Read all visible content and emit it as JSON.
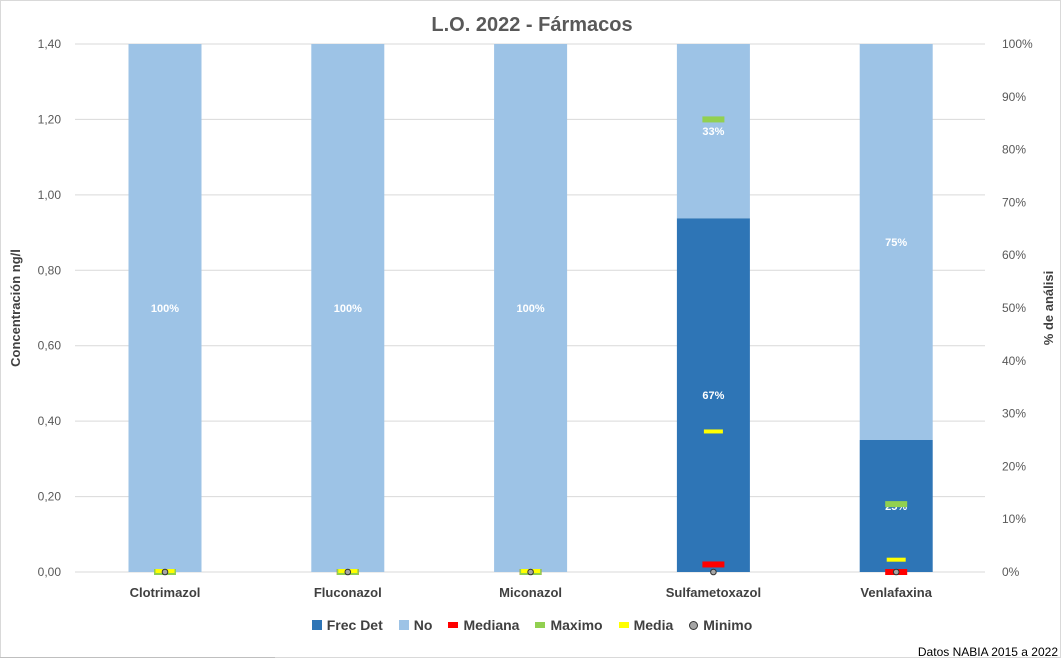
{
  "chart_data": {
    "type": "bar",
    "title": "L.O. 2022 - Fármacos",
    "ylabel": "Concentración ng/l",
    "y2label": "% de análisi",
    "ylim": [
      0,
      1.4
    ],
    "y2lim": [
      0,
      100
    ],
    "yticks": [
      "0,00",
      "0,20",
      "0,40",
      "0,60",
      "0,80",
      "1,00",
      "1,20",
      "1,40"
    ],
    "y2ticks": [
      "0%",
      "10%",
      "20%",
      "30%",
      "40%",
      "50%",
      "60%",
      "70%",
      "80%",
      "90%",
      "100%"
    ],
    "grid": true,
    "legend_position": "bottom",
    "categories": [
      "Clotrimazol",
      "Fluconazol",
      "Miconazol",
      "Sulfametoxazol",
      "Venlafaxina"
    ],
    "stacked_percent_series": [
      {
        "name": "Frec Det",
        "color": "#2e75b6",
        "values": [
          0,
          0,
          0,
          67,
          25
        ],
        "labels": [
          "",
          "",
          "",
          "67%",
          "25%"
        ]
      },
      {
        "name": "No",
        "color": "#9dc3e6",
        "values": [
          100,
          100,
          100,
          33,
          75
        ],
        "labels": [
          "100%",
          "100%",
          "100%",
          "33%",
          "75%"
        ]
      }
    ],
    "marker_series": [
      {
        "name": "Mediana",
        "color": "#ff0000",
        "values": [
          0,
          0,
          0,
          0.02,
          0.0
        ]
      },
      {
        "name": "Maximo",
        "color": "#92d050",
        "values": [
          0,
          0,
          0,
          1.2,
          0.18
        ]
      },
      {
        "name": "Media",
        "color": "#ffff00",
        "values": [
          0,
          0,
          0,
          0.37,
          0.03
        ]
      },
      {
        "name": "Minimo",
        "color": "#a6a6a6",
        "values": [
          0,
          0,
          0,
          0,
          0
        ]
      }
    ]
  },
  "legend": [
    "Frec Det",
    "No",
    "Mediana",
    "Maximo",
    "Media",
    "Minimo"
  ],
  "source": "Datos NABIA 2015 a 2022"
}
